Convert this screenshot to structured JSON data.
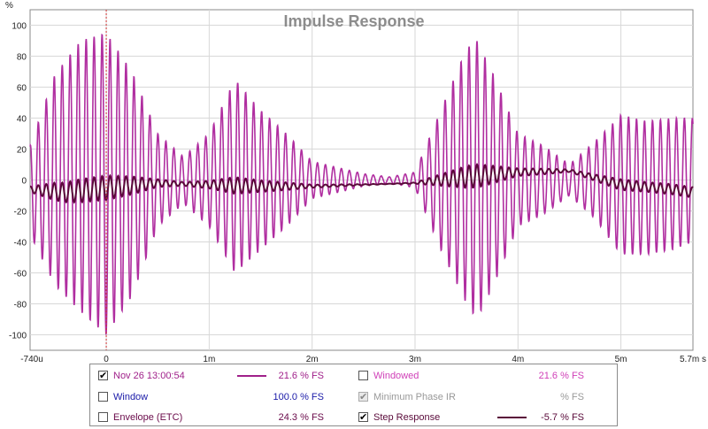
{
  "chart_data": {
    "type": "line",
    "title": "Impulse Response",
    "ylabel": "%",
    "xlabel": "",
    "xlim": [
      -0.74,
      5.7
    ],
    "ylim": [
      -110,
      110
    ],
    "grid": true,
    "x_tick_labels": [
      "-740u",
      "0",
      "1m",
      "2m",
      "3m",
      "4m",
      "5m",
      "5.7m s"
    ],
    "x_tick_values": [
      -0.74,
      0,
      1,
      2,
      3,
      4,
      5,
      5.7
    ],
    "y_tick_labels": [
      "100",
      "80",
      "60",
      "40",
      "20",
      "0",
      "-20",
      "-40",
      "-60",
      "-80",
      "-100"
    ],
    "y_tick_values": [
      100,
      80,
      60,
      40,
      20,
      0,
      -20,
      -40,
      -60,
      -80,
      -100
    ],
    "marker_x": 0,
    "series": [
      {
        "name": "Nov 26 13:00:54",
        "color": "#b02ea0",
        "points_x": [
          -0.74,
          -0.5,
          -0.25,
          0,
          0.25,
          0.5,
          0.75,
          1.0,
          1.25,
          1.5,
          1.75,
          2.0,
          2.25,
          2.5,
          2.75,
          3.0,
          3.25,
          3.5,
          3.6,
          3.75,
          4.0,
          4.25,
          4.5,
          4.75,
          5.0,
          5.25,
          5.5,
          5.7
        ],
        "envelope_upper": [
          22,
          68,
          90,
          95,
          70,
          30,
          15,
          30,
          65,
          45,
          30,
          12,
          8,
          4,
          2,
          5,
          45,
          85,
          90,
          70,
          30,
          22,
          10,
          25,
          42,
          38,
          40,
          40
        ],
        "envelope_lower": [
          -35,
          -68,
          -85,
          -100,
          -75,
          -30,
          -15,
          -30,
          -60,
          -45,
          -30,
          -12,
          -8,
          -4,
          -2,
          -5,
          -45,
          -80,
          -90,
          -70,
          -30,
          -22,
          -10,
          -25,
          -48,
          -48,
          -45,
          -40
        ]
      },
      {
        "name": "Step Response",
        "color": "#5a0a3a",
        "points_x": [
          -0.74,
          -0.4,
          0,
          0.5,
          1.0,
          1.5,
          2.0,
          2.5,
          3.0,
          3.5,
          4.0,
          4.5,
          5.0,
          5.5,
          5.7
        ],
        "points_y": [
          -6,
          -8,
          -5,
          -2,
          -3,
          -4,
          -4,
          -3,
          -2,
          2,
          5,
          6,
          -3,
          -6,
          -8
        ]
      }
    ]
  },
  "legend": {
    "rows": [
      {
        "label": "Nov 26 13:00:54",
        "checked": true,
        "value": "21.6 % FS",
        "color": "#a0208a",
        "swatch": "#a0208a"
      },
      {
        "label": "Window",
        "checked": false,
        "value": "100.0 % FS",
        "color": "#1a1aa8",
        "swatch": ""
      },
      {
        "label": "Envelope (ETC)",
        "checked": false,
        "value": "24.3 % FS",
        "color": "#6a0a4a",
        "swatch": ""
      },
      {
        "label": "Windowed",
        "checked": false,
        "value": "21.6 % FS",
        "color": "#d040b8",
        "swatch": ""
      },
      {
        "label": "Minimum Phase IR",
        "checked": true,
        "disabled": true,
        "value": "% FS",
        "color": "#999999",
        "swatch": ""
      },
      {
        "label": "Step Response",
        "checked": true,
        "value": "-5.7 % FS",
        "color": "#5a0a3a",
        "swatch": "#5a0a3a"
      }
    ]
  }
}
